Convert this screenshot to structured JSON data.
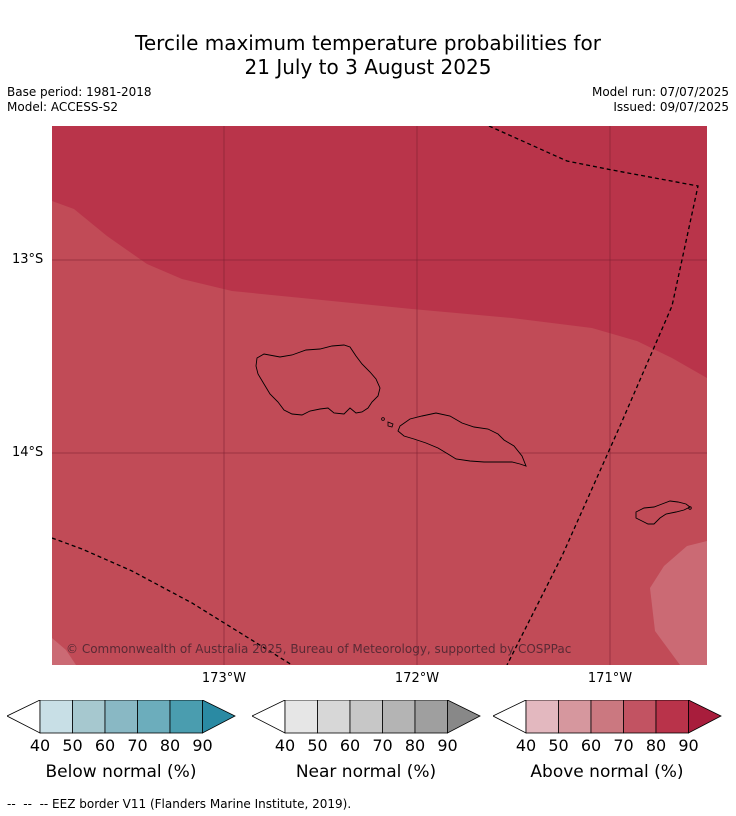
{
  "title": {
    "line1": "Tercile maximum temperature probabilities for",
    "line2": "21 July to 3 August 2025"
  },
  "meta": {
    "base_period": "Base period: 1981-2018",
    "model": "Model: ACCESS-S2",
    "model_run": "Model run: 07/07/2025",
    "issued": "Issued: 09/07/2025"
  },
  "map": {
    "lat_labels": [
      "13°S",
      "14°S"
    ],
    "lon_labels": [
      "173°W",
      "172°W",
      "171°W"
    ],
    "copyright": "© Commonwealth of Australia 2025, Bureau of Meteorology, supported by COSPPac",
    "region_levels": {
      "dominant_above_normal_pct": "70-80",
      "north_band_above_normal_pct": "80-90",
      "southeast_patch_above_normal_pct": "60-70"
    },
    "colors": {
      "above_80_90": "#b9344a",
      "above_70_80": "#c14b57",
      "above_60_70": "#cb6a74",
      "grid": "#7a2030",
      "coast": "#000000",
      "eez": "#000000"
    }
  },
  "legends": [
    {
      "caption": "Below normal (%)",
      "ticks": [
        "40",
        "50",
        "60",
        "70",
        "80",
        "90"
      ],
      "colors": [
        "#ffffff",
        "#c8dfe6",
        "#a6c8cf",
        "#89b8c4",
        "#6cadbc",
        "#4a9daf",
        "#2a8aa3"
      ]
    },
    {
      "caption": "Near normal (%)",
      "ticks": [
        "40",
        "50",
        "60",
        "70",
        "80",
        "90"
      ],
      "colors": [
        "#ffffff",
        "#e6e6e6",
        "#d7d7d7",
        "#c7c7c7",
        "#b4b4b4",
        "#9f9f9f",
        "#888888"
      ]
    },
    {
      "caption": "Above normal (%)",
      "ticks": [
        "40",
        "50",
        "60",
        "70",
        "80",
        "90"
      ],
      "colors": [
        "#ffffff",
        "#e3b8bf",
        "#d6979e",
        "#cb7880",
        "#c25362",
        "#b9334a",
        "#a81d3c"
      ]
    }
  ],
  "footnote": "--  --  -- EEZ border V11 (Flanders Marine Institute, 2019)."
}
